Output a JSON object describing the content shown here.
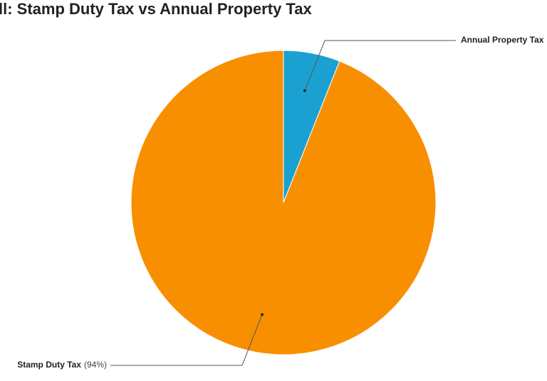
{
  "chart_data": {
    "type": "pie",
    "title": "ll: Stamp Duty Tax vs Annual Property Tax",
    "categories": [
      "Annual Property Tax",
      "Stamp Duty Tax"
    ],
    "values": [
      6,
      94
    ],
    "value_labels": [
      null,
      "(94%)"
    ],
    "colors": [
      "#1ba1d1",
      "#f88f00"
    ]
  }
}
